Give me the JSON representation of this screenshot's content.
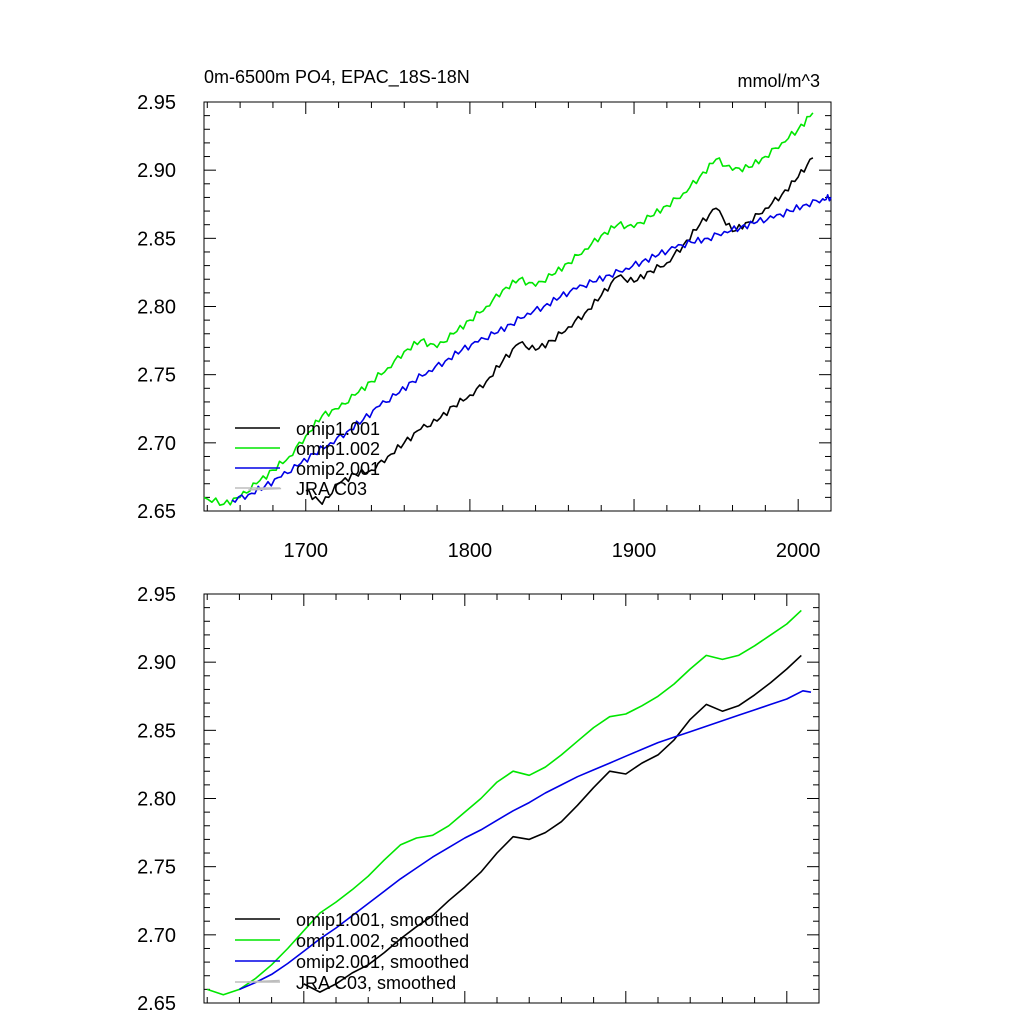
{
  "title_left": "0m-6500m PO4, EPAC_18S-18N",
  "title_right": "mmol/m^3",
  "colors": {
    "omip1_001": "#000000",
    "omip1_002": "#00e600",
    "omip2_001": "#0000e6",
    "jra_c03": "#bdbdbd"
  },
  "chart_data": [
    {
      "type": "line",
      "title": "0m-6500m PO4, EPAC_18S-18N",
      "units": "mmol/m^3",
      "xlim": [
        1638,
        2020
      ],
      "ylim": [
        2.65,
        2.95
      ],
      "x_ticks": [
        1700,
        1800,
        1900,
        2000
      ],
      "x_tick_labels": [
        "1700",
        "1800",
        "1900",
        "2000"
      ],
      "y_ticks": [
        2.65,
        2.7,
        2.75,
        2.8,
        2.85,
        2.9,
        2.95
      ],
      "y_tick_labels": [
        "2.65",
        "2.70",
        "2.75",
        "2.80",
        "2.85",
        "2.90",
        "2.95"
      ],
      "legend_position": "bottom-left",
      "legend": [
        "omip1.001",
        "omip1.002",
        "omip2.001",
        "JRA C03"
      ],
      "series": [
        {
          "name": "omip1.001",
          "color": "#000000",
          "x": [
            1700,
            1710,
            1720,
            1730,
            1740,
            1750,
            1760,
            1770,
            1780,
            1790,
            1800,
            1810,
            1820,
            1830,
            1840,
            1850,
            1860,
            1870,
            1880,
            1890,
            1900,
            1910,
            1920,
            1930,
            1940,
            1950,
            1960,
            1970,
            1980,
            1990,
            2000,
            2009
          ],
          "y": [
            2.665,
            2.655,
            2.67,
            2.677,
            2.68,
            2.69,
            2.7,
            2.71,
            2.716,
            2.727,
            2.735,
            2.745,
            2.76,
            2.773,
            2.768,
            2.775,
            2.785,
            2.795,
            2.808,
            2.822,
            2.818,
            2.826,
            2.832,
            2.845,
            2.86,
            2.872,
            2.855,
            2.862,
            2.872,
            2.882,
            2.895,
            2.909
          ]
        },
        {
          "name": "omip1.002",
          "color": "#00e600",
          "x": [
            1638,
            1650,
            1660,
            1670,
            1680,
            1690,
            1700,
            1710,
            1720,
            1730,
            1740,
            1750,
            1760,
            1770,
            1780,
            1790,
            1800,
            1810,
            1820,
            1830,
            1840,
            1850,
            1860,
            1870,
            1880,
            1890,
            1900,
            1910,
            1920,
            1930,
            1940,
            1950,
            1960,
            1970,
            1980,
            1990,
            2000,
            2009
          ],
          "y": [
            2.66,
            2.655,
            2.66,
            2.67,
            2.68,
            2.69,
            2.705,
            2.72,
            2.725,
            2.735,
            2.745,
            2.755,
            2.767,
            2.775,
            2.77,
            2.78,
            2.79,
            2.8,
            2.812,
            2.82,
            2.815,
            2.823,
            2.832,
            2.842,
            2.852,
            2.86,
            2.858,
            2.866,
            2.874,
            2.883,
            2.895,
            2.908,
            2.9,
            2.902,
            2.91,
            2.92,
            2.93,
            2.942
          ]
        },
        {
          "name": "omip2.001",
          "color": "#0000e6",
          "x": [
            1655,
            1665,
            1675,
            1685,
            1695,
            1705,
            1715,
            1725,
            1735,
            1745,
            1755,
            1765,
            1775,
            1785,
            1795,
            1805,
            1815,
            1825,
            1835,
            1845,
            1855,
            1865,
            1875,
            1885,
            1895,
            1905,
            1915,
            1925,
            1935,
            1945,
            1955,
            1965,
            1975,
            1985,
            1995,
            2005,
            2015,
            2020
          ],
          "y": [
            2.658,
            2.662,
            2.668,
            2.675,
            2.683,
            2.692,
            2.7,
            2.708,
            2.717,
            2.727,
            2.735,
            2.745,
            2.753,
            2.76,
            2.768,
            2.774,
            2.78,
            2.787,
            2.795,
            2.8,
            2.807,
            2.813,
            2.818,
            2.823,
            2.828,
            2.833,
            2.838,
            2.843,
            2.847,
            2.85,
            2.855,
            2.858,
            2.862,
            2.865,
            2.87,
            2.875,
            2.879,
            2.88
          ]
        },
        {
          "name": "JRA C03",
          "color": "#bdbdbd",
          "x": [
            1665,
            1685
          ],
          "y": [
            2.6655,
            2.6665
          ]
        }
      ]
    },
    {
      "type": "line",
      "xlim": [
        1638,
        2020
      ],
      "ylim": [
        2.65,
        2.95
      ],
      "x_ticks": [
        1700,
        1800,
        1900,
        2000
      ],
      "y_ticks": [
        2.65,
        2.7,
        2.75,
        2.8,
        2.85,
        2.9,
        2.95
      ],
      "y_tick_labels": [
        "2.65",
        "2.70",
        "2.75",
        "2.80",
        "2.85",
        "2.90",
        "2.95"
      ],
      "legend_position": "bottom-left",
      "legend": [
        "omip1.001, smoothed",
        "omip1.002, smoothed",
        "omip2.001, smoothed",
        "JRA C03, smoothed"
      ],
      "series": [
        {
          "name": "omip1.001, smoothed",
          "color": "#000000",
          "x": [
            1700,
            1710,
            1720,
            1730,
            1740,
            1750,
            1760,
            1770,
            1780,
            1790,
            1800,
            1810,
            1820,
            1830,
            1840,
            1850,
            1860,
            1870,
            1880,
            1890,
            1900,
            1910,
            1920,
            1930,
            1940,
            1950,
            1960,
            1970,
            1980,
            1990,
            2000,
            2009
          ],
          "y": [
            2.664,
            2.658,
            2.664,
            2.672,
            2.678,
            2.687,
            2.697,
            2.706,
            2.714,
            2.725,
            2.735,
            2.746,
            2.76,
            2.772,
            2.77,
            2.775,
            2.783,
            2.795,
            2.808,
            2.82,
            2.818,
            2.826,
            2.832,
            2.843,
            2.858,
            2.869,
            2.864,
            2.868,
            2.876,
            2.885,
            2.895,
            2.905
          ]
        },
        {
          "name": "omip1.002, smoothed",
          "color": "#00e600",
          "x": [
            1640,
            1650,
            1660,
            1670,
            1680,
            1690,
            1700,
            1710,
            1720,
            1730,
            1740,
            1750,
            1760,
            1770,
            1780,
            1790,
            1800,
            1810,
            1820,
            1830,
            1840,
            1850,
            1860,
            1870,
            1880,
            1890,
            1900,
            1910,
            1920,
            1930,
            1940,
            1950,
            1960,
            1970,
            1980,
            1990,
            2000,
            2009
          ],
          "y": [
            2.66,
            2.656,
            2.66,
            2.668,
            2.678,
            2.69,
            2.703,
            2.716,
            2.724,
            2.733,
            2.743,
            2.755,
            2.766,
            2.771,
            2.773,
            2.78,
            2.79,
            2.8,
            2.812,
            2.82,
            2.817,
            2.823,
            2.832,
            2.842,
            2.852,
            2.86,
            2.862,
            2.868,
            2.875,
            2.884,
            2.895,
            2.905,
            2.902,
            2.905,
            2.912,
            2.92,
            2.928,
            2.938
          ]
        },
        {
          "name": "omip2.001, smoothed",
          "color": "#0000e6",
          "x": [
            1660,
            1670,
            1680,
            1690,
            1700,
            1710,
            1720,
            1730,
            1740,
            1750,
            1760,
            1770,
            1780,
            1790,
            1800,
            1810,
            1820,
            1830,
            1840,
            1850,
            1860,
            1870,
            1880,
            1890,
            1900,
            1910,
            1920,
            1930,
            1940,
            1950,
            1960,
            1970,
            1980,
            1990,
            2000,
            2010,
            2015
          ],
          "y": [
            2.66,
            2.665,
            2.671,
            2.679,
            2.688,
            2.697,
            2.705,
            2.714,
            2.723,
            2.732,
            2.741,
            2.749,
            2.757,
            2.764,
            2.771,
            2.777,
            2.784,
            2.791,
            2.797,
            2.804,
            2.81,
            2.816,
            2.821,
            2.826,
            2.831,
            2.836,
            2.841,
            2.845,
            2.849,
            2.853,
            2.857,
            2.861,
            2.865,
            2.869,
            2.873,
            2.879,
            2.878
          ]
        },
        {
          "name": "JRA C03, smoothed",
          "color": "#bdbdbd",
          "x": [
            1665,
            1685
          ],
          "y": [
            2.6655,
            2.6665
          ]
        }
      ]
    }
  ]
}
